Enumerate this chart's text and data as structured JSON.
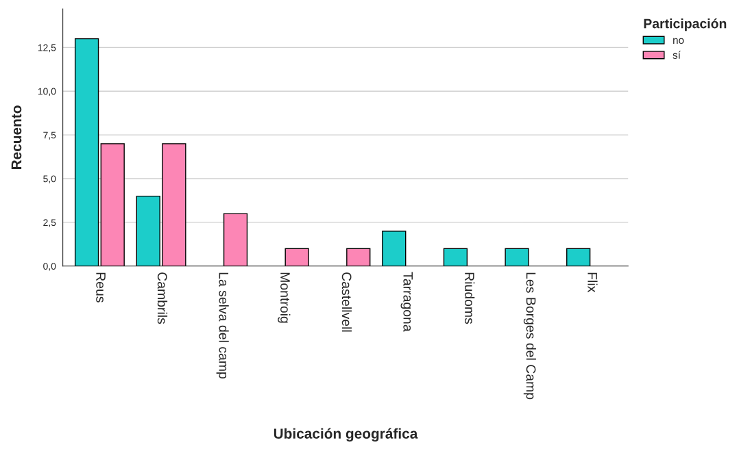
{
  "chart_data": {
    "type": "bar",
    "xlabel": "Ubicación geográfica",
    "ylabel": "Recuento",
    "legend_title": "Participación",
    "categories": [
      "Reus",
      "Cambrils",
      "La selva del camp",
      "Montroig",
      "Castellvell",
      "Tarragona",
      "Riudoms",
      "Les Borges del Camp",
      "Flix"
    ],
    "series": [
      {
        "name": "no",
        "color": "#1ccdca",
        "values": [
          13,
          4,
          null,
          null,
          null,
          2,
          1,
          1,
          1
        ]
      },
      {
        "name": "sí",
        "color": "#fc86b5",
        "values": [
          7,
          7,
          3,
          1,
          1,
          null,
          null,
          null,
          null
        ]
      }
    ],
    "ylim": [
      0,
      14.7
    ],
    "yticks": [
      {
        "value": 0,
        "label": "0,0"
      },
      {
        "value": 2.5,
        "label": "2,5"
      },
      {
        "value": 5,
        "label": "5,0"
      },
      {
        "value": 7.5,
        "label": "7,5"
      },
      {
        "value": 10,
        "label": "10,0"
      },
      {
        "value": 12.5,
        "label": "12,5"
      }
    ],
    "grid": "y",
    "legend": "top right"
  }
}
